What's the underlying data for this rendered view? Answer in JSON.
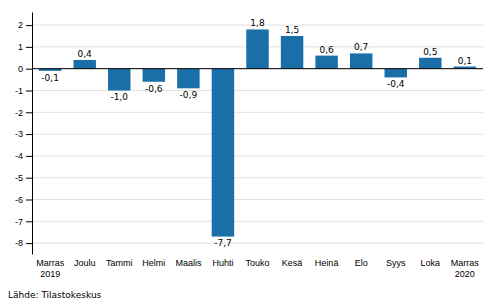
{
  "chart_data": {
    "type": "bar",
    "categories": [
      "Marras\n2019",
      "Joulu",
      "Tammi",
      "Helmi",
      "Maalis",
      "Huhti",
      "Touko",
      "Kesä",
      "Heinä",
      "Elo",
      "Syys",
      "Loka",
      "Marras\n2020"
    ],
    "values": [
      -0.1,
      0.4,
      -1.0,
      -0.6,
      -0.9,
      -7.7,
      1.8,
      1.5,
      0.6,
      0.7,
      -0.4,
      0.5,
      0.1
    ],
    "value_labels": [
      "-0,1",
      "0,4",
      "-1,0",
      "-0,6",
      "-0,9",
      "-7,7",
      "1,8",
      "1,5",
      "0,6",
      "0,7",
      "-0,4",
      "0,5",
      "0,1"
    ],
    "color": "#1a6fa8",
    "ylim": [
      -8.5,
      2.6
    ],
    "yticks": [
      -8,
      -7,
      -6,
      -5,
      -4,
      -3,
      -2,
      -1,
      0,
      1,
      2
    ],
    "grid": true,
    "data_labels": true,
    "annotations": [
      "Lähde: Tilastokeskus"
    ]
  }
}
